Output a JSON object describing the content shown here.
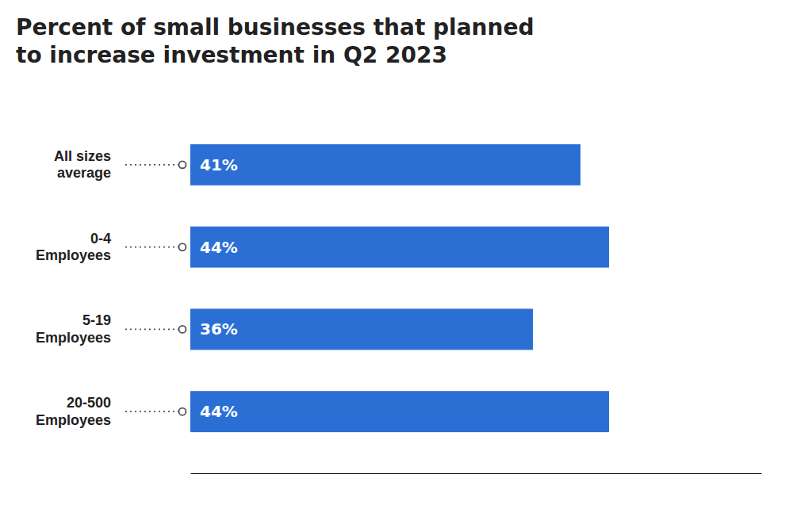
{
  "chart_data": {
    "type": "bar",
    "orientation": "horizontal",
    "title": "Percent of small businesses that planned\nto increase investment in Q2 2023",
    "categories": [
      "All sizes\naverage",
      "0-4\nEmployees",
      "5-19\nEmployees",
      "20-500\nEmployees"
    ],
    "values": [
      41,
      44,
      36,
      44
    ],
    "value_labels": [
      "41%",
      "44%",
      "36%",
      "44%"
    ],
    "data_labels": true,
    "color": "#2B6FD4",
    "xlim": [
      0,
      60
    ],
    "xticks": [],
    "tick_labels": "y",
    "grid": false
  }
}
